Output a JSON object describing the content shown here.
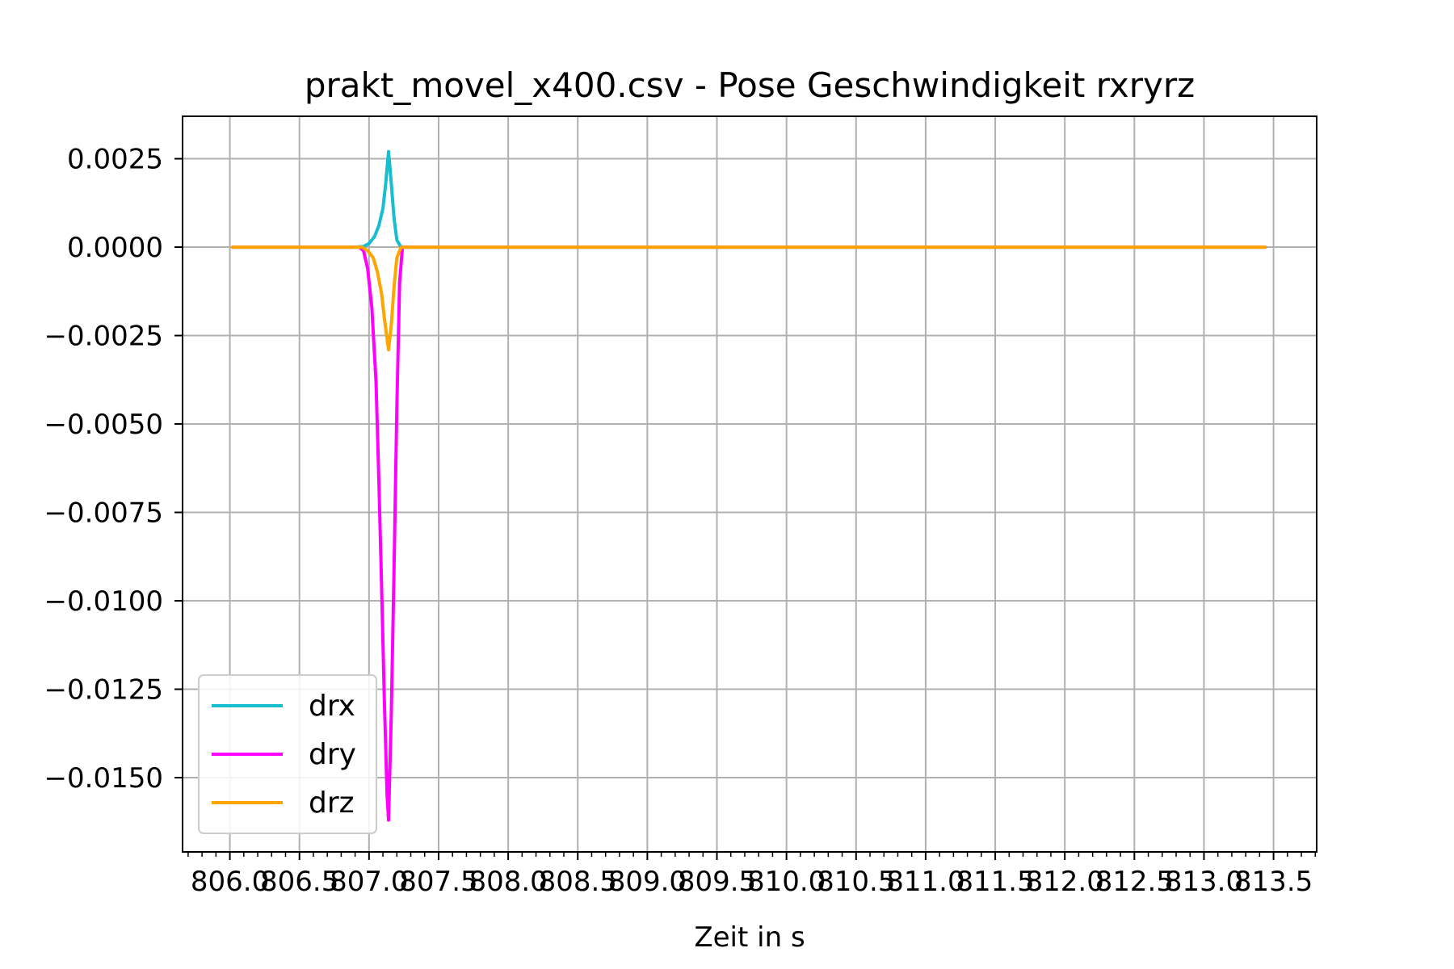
{
  "chart_data": {
    "type": "line",
    "title": "prakt_movel_x400.csv - Pose Geschwindigkeit rxryrz",
    "xlabel": "Zeit in s",
    "ylabel": "",
    "xlim": [
      805.66,
      813.81
    ],
    "ylim": [
      -0.0171,
      0.0037
    ],
    "xticks": [
      806.0,
      806.5,
      807.0,
      807.5,
      808.0,
      808.5,
      809.0,
      809.5,
      810.0,
      810.5,
      811.0,
      811.5,
      812.0,
      812.5,
      813.0,
      813.5
    ],
    "xtick_labels": [
      "806.0",
      "806.5",
      "807.0",
      "807.5",
      "808.0",
      "808.5",
      "809.0",
      "809.5",
      "810.0",
      "810.5",
      "811.0",
      "811.5",
      "812.0",
      "812.5",
      "813.0",
      "813.5"
    ],
    "yticks": [
      0.0025,
      0.0,
      -0.0025,
      -0.005,
      -0.0075,
      -0.01,
      -0.0125,
      -0.015
    ],
    "ytick_labels": [
      "0.0025",
      "0.0000",
      "−0.0025",
      "−0.0050",
      "−0.0075",
      "−0.0100",
      "−0.0125",
      "−0.0150"
    ],
    "grid": true,
    "legend_position": "lower-left",
    "series": [
      {
        "name": "drx",
        "color": "#17becf",
        "x": [
          806.02,
          806.9,
          806.96,
          807.0,
          807.04,
          807.07,
          807.1,
          807.12,
          807.14,
          807.16,
          807.18,
          807.2,
          807.23,
          813.44
        ],
        "y": [
          0.0,
          0.0,
          2e-05,
          0.0001,
          0.0003,
          0.0006,
          0.0011,
          0.0018,
          0.0027,
          0.0018,
          0.0008,
          0.0002,
          0.0,
          0.0
        ]
      },
      {
        "name": "dry",
        "color": "#ff00ff",
        "x": [
          806.02,
          806.93,
          806.96,
          806.99,
          807.02,
          807.05,
          807.07,
          807.09,
          807.11,
          807.13,
          807.14,
          807.16,
          807.18,
          807.2,
          807.22,
          807.24,
          813.44
        ],
        "y": [
          0.0,
          0.0,
          -0.0001,
          -0.0006,
          -0.0017,
          -0.0038,
          -0.0065,
          -0.0095,
          -0.0128,
          -0.0155,
          -0.0162,
          -0.0132,
          -0.009,
          -0.0045,
          -0.001,
          0.0,
          0.0
        ]
      },
      {
        "name": "drz",
        "color": "#ffa500",
        "x": [
          806.02,
          806.95,
          806.99,
          807.03,
          807.06,
          807.09,
          807.11,
          807.13,
          807.14,
          807.16,
          807.18,
          807.2,
          807.23,
          813.44
        ],
        "y": [
          0.0,
          0.0,
          -0.0001,
          -0.0003,
          -0.0007,
          -0.0013,
          -0.002,
          -0.0026,
          -0.0029,
          -0.0022,
          -0.0011,
          -0.0003,
          0.0,
          0.0
        ]
      }
    ]
  }
}
